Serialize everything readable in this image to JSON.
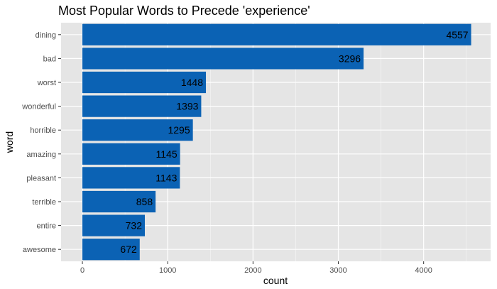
{
  "chart_data": {
    "type": "bar",
    "orientation": "horizontal",
    "title": "Most Popular Words to Precede 'experience'",
    "xlabel": "count",
    "ylabel": "word",
    "categories": [
      "dining",
      "bad",
      "worst",
      "wonderful",
      "horrible",
      "amazing",
      "pleasant",
      "terrible",
      "entire",
      "awesome"
    ],
    "values": [
      4557,
      3296,
      1448,
      1393,
      1295,
      1145,
      1143,
      858,
      732,
      672
    ],
    "xlim": [
      -250,
      4785
    ],
    "xticks": [
      0,
      1000,
      2000,
      3000,
      4000
    ],
    "xtick_labels": [
      "0",
      "1000",
      "2000",
      "3000",
      "4000"
    ],
    "grid": true,
    "legend": "none",
    "colors": {
      "bar": "#0b62b4",
      "panel": "#e5e5e5",
      "grid_major": "#ffffff",
      "text": "#000000",
      "tick_text": "#4d4d4d"
    }
  }
}
